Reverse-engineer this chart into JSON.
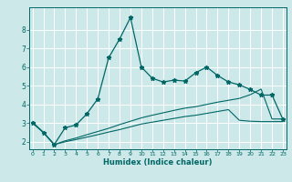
{
  "xlabel": "Humidex (Indice chaleur)",
  "bg_color": "#cce8e8",
  "grid_color": "#ffffff",
  "line_color": "#006666",
  "x_ticks": [
    0,
    1,
    2,
    3,
    4,
    5,
    6,
    7,
    8,
    9,
    10,
    11,
    12,
    13,
    14,
    15,
    16,
    17,
    18,
    19,
    20,
    21,
    22,
    23
  ],
  "y_ticks": [
    2,
    3,
    4,
    5,
    6,
    7,
    8
  ],
  "xlim": [
    -0.3,
    23.3
  ],
  "ylim": [
    1.6,
    9.2
  ],
  "main_x": [
    0,
    1,
    2,
    3,
    4,
    5,
    6,
    7,
    8,
    9,
    10,
    11,
    12,
    13,
    14,
    15,
    16,
    17,
    18,
    19,
    20,
    21,
    22,
    23
  ],
  "main_y": [
    3.0,
    2.5,
    1.85,
    2.75,
    2.9,
    3.5,
    4.3,
    6.5,
    7.5,
    8.65,
    6.0,
    5.4,
    5.2,
    5.3,
    5.25,
    5.7,
    6.0,
    5.55,
    5.2,
    5.05,
    4.8,
    4.5,
    4.5,
    3.2
  ],
  "line2_x": [
    0,
    1,
    2,
    3,
    4,
    5,
    6,
    7,
    8,
    9,
    10,
    11,
    12,
    13,
    14,
    15,
    16,
    17,
    18,
    19,
    20,
    21,
    22,
    23
  ],
  "line2_y": [
    3.05,
    2.5,
    1.85,
    2.05,
    2.2,
    2.38,
    2.55,
    2.72,
    2.92,
    3.1,
    3.28,
    3.42,
    3.55,
    3.68,
    3.8,
    3.88,
    4.0,
    4.12,
    4.22,
    4.32,
    4.52,
    4.82,
    3.22,
    3.22
  ],
  "line3_x": [
    0,
    1,
    2,
    3,
    4,
    5,
    6,
    7,
    8,
    9,
    10,
    11,
    12,
    13,
    14,
    15,
    16,
    17,
    18,
    19,
    20,
    21,
    22,
    23
  ],
  "line3_y": [
    3.05,
    2.5,
    1.85,
    2.0,
    2.12,
    2.25,
    2.38,
    2.52,
    2.65,
    2.8,
    2.95,
    3.05,
    3.15,
    3.25,
    3.35,
    3.42,
    3.52,
    3.62,
    3.72,
    3.15,
    3.1,
    3.08,
    3.08,
    3.08
  ]
}
